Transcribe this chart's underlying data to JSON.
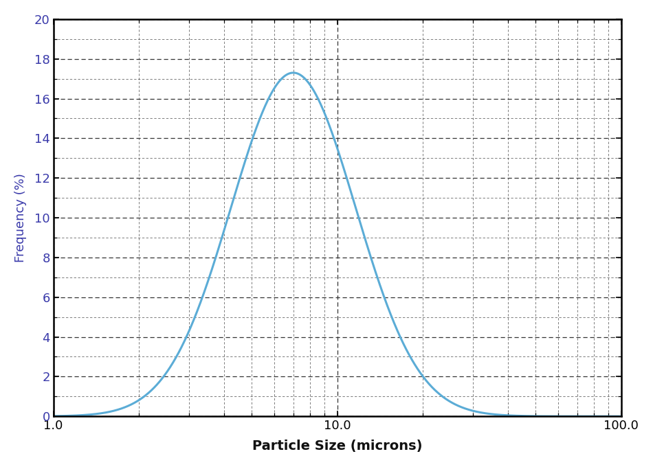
{
  "title": "",
  "xlabel": "Particle Size (microns)",
  "ylabel": "Frequency (%)",
  "xlim": [
    1.0,
    100.0
  ],
  "ylim": [
    0,
    20
  ],
  "yticks": [
    0,
    2,
    4,
    6,
    8,
    10,
    12,
    14,
    16,
    18,
    20
  ],
  "curve_color": "#5bacd6",
  "curve_linewidth": 2.2,
  "background_color": "#ffffff",
  "grid_color": "#333333",
  "axis_color": "#000000",
  "label_color": "#3a3aaa",
  "xlabel_color": "#111111",
  "mu_log10": 0.845,
  "sigma_log10": 0.22,
  "peak_scale": 17.3,
  "xtick_labels": [
    "1.0",
    "10.0",
    "100.0"
  ],
  "xtick_positions": [
    1.0,
    10.0,
    100.0
  ]
}
